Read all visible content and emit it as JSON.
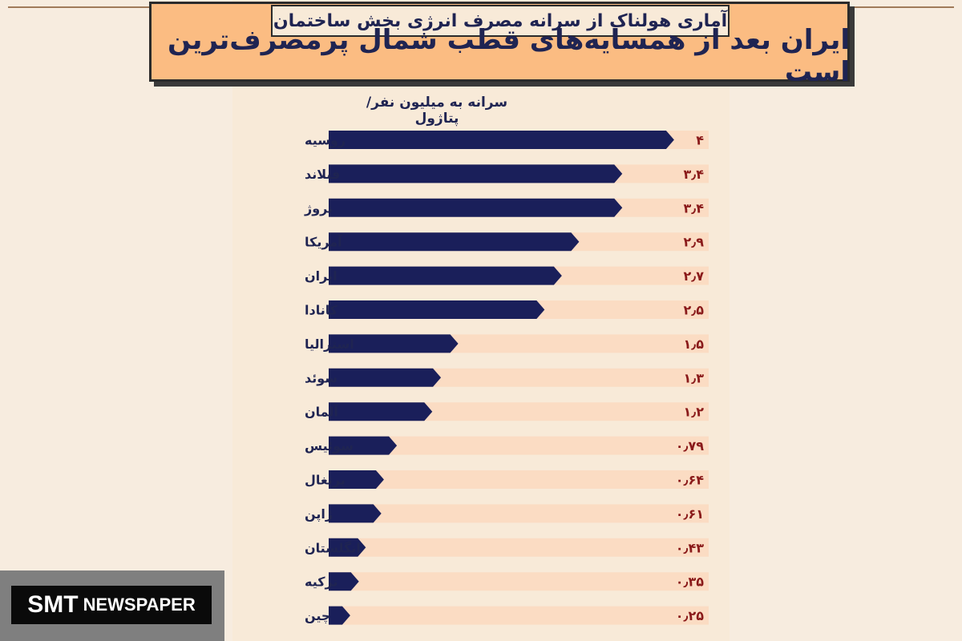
{
  "header": {
    "subtitle": "آماری هولناک از سرانه مصرف انرژی بخش ساختمان",
    "title": "ایران بعد از همسایه‌های قطب شمال پرمصرف‌ترین است"
  },
  "watermark": {
    "brand": "SMT",
    "rest": "NEWSPAPER"
  },
  "colors": {
    "bar": "#1a1f5a",
    "track": "#fbdcc3",
    "value": "#8a1a1a",
    "label": "#1f2452"
  },
  "chart_data": {
    "type": "bar",
    "orientation": "horizontal",
    "title": "",
    "xlabel": "سرانه به میلیون نفر/پتاژول",
    "xlim": [
      0,
      4.4
    ],
    "categories": [
      "روسیه",
      "فنلاند",
      "نروژ",
      "آمریکا",
      "ایران",
      "کانادا",
      "استرالیا",
      "سوئد",
      "آلمان",
      "سوئیس",
      "پرتغال",
      "ژاپن",
      "انگلستان",
      "ترکیه",
      "چین"
    ],
    "values": [
      4,
      3.4,
      3.4,
      2.9,
      2.7,
      2.5,
      1.5,
      1.3,
      1.2,
      0.79,
      0.64,
      0.61,
      0.43,
      0.35,
      0.25
    ],
    "value_labels": [
      "۴",
      "۳٫۴",
      "۳٫۴",
      "۲٫۹",
      "۲٫۷",
      "۲٫۵",
      "۱٫۵",
      "۱٫۳",
      "۱٫۲",
      "۰٫۷۹",
      "۰٫۶۴",
      "۰٫۶۱",
      "۰٫۴۳",
      "۰٫۳۵",
      "۰٫۲۵"
    ]
  }
}
